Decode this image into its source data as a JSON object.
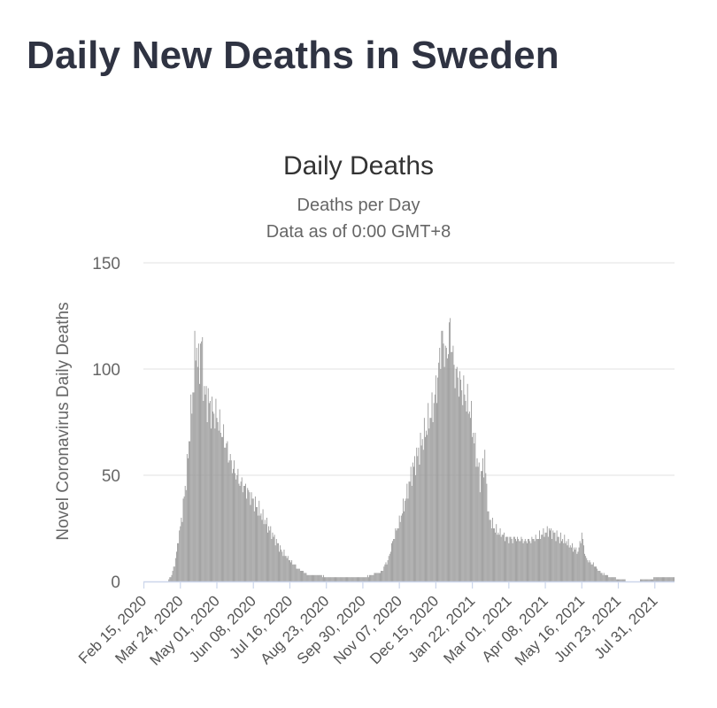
{
  "page": {
    "heading": "Daily New Deaths in Sweden"
  },
  "chart_data": {
    "type": "bar",
    "title": "Daily Deaths",
    "subtitle": "Deaths per Day",
    "subtitle2": "Data as of 0:00 GMT+8",
    "ylabel": "Novel Coronavirus Daily Deaths",
    "xlabel": "",
    "ylim": [
      0,
      150
    ],
    "y_ticks": [
      0,
      50,
      100,
      150
    ],
    "grid": true,
    "legend": "none",
    "bar_color": "#999999",
    "grid_color": "#e6e6e6",
    "baseline_color": "#ccd6eb",
    "x_tick_labels": [
      "Feb 15, 2020",
      "Mar 24, 2020",
      "May 01, 2020",
      "Jun 08, 2020",
      "Jul 16, 2020",
      "Aug 23, 2020",
      "Sep 30, 2020",
      "Nov 07, 2020",
      "Dec 15, 2020",
      "Jan 22, 2021",
      "Mar 01, 2021",
      "Apr 08, 2021",
      "May 16, 2021",
      "Jun 23, 2021",
      "Jul 31, 2021"
    ],
    "start_date": "Feb 15, 2020",
    "end_date": "Aug 20, 2021",
    "anchors": [
      [
        "Feb 15, 2020",
        0
      ],
      [
        "Mar 10, 2020",
        0
      ],
      [
        "Mar 14, 2020",
        2
      ],
      [
        "Mar 18, 2020",
        8
      ],
      [
        "Mar 22, 2020",
        20
      ],
      [
        "Mar 26, 2020",
        32
      ],
      [
        "Mar 30, 2020",
        48
      ],
      [
        "Apr 03, 2020",
        72
      ],
      [
        "Apr 07, 2020",
        95
      ],
      [
        "Apr 09, 2020",
        114
      ],
      [
        "Apr 12, 2020",
        100
      ],
      [
        "Apr 15, 2020",
        114
      ],
      [
        "Apr 18, 2020",
        88
      ],
      [
        "Apr 22, 2020",
        85
      ],
      [
        "Apr 26, 2020",
        80
      ],
      [
        "May 01, 2020",
        78
      ],
      [
        "May 05, 2020",
        72
      ],
      [
        "May 10, 2020",
        65
      ],
      [
        "May 15, 2020",
        57
      ],
      [
        "May 20, 2020",
        52
      ],
      [
        "May 25, 2020",
        47
      ],
      [
        "Jun 01, 2020",
        43
      ],
      [
        "Jun 08, 2020",
        38
      ],
      [
        "Jun 15, 2020",
        33
      ],
      [
        "Jun 22, 2020",
        27
      ],
      [
        "Jun 29, 2020",
        21
      ],
      [
        "Jul 05, 2020",
        16
      ],
      [
        "Jul 12, 2020",
        12
      ],
      [
        "Jul 20, 2020",
        8
      ],
      [
        "Jul 28, 2020",
        5
      ],
      [
        "Aug 05, 2020",
        3
      ],
      [
        "Aug 15, 2020",
        3
      ],
      [
        "Aug 25, 2020",
        2
      ],
      [
        "Sep 10, 2020",
        2
      ],
      [
        "Sep 30, 2020",
        2
      ],
      [
        "Oct 10, 2020",
        3
      ],
      [
        "Oct 20, 2020",
        5
      ],
      [
        "Oct 26, 2020",
        10
      ],
      [
        "Nov 01, 2020",
        20
      ],
      [
        "Nov 07, 2020",
        28
      ],
      [
        "Nov 14, 2020",
        40
      ],
      [
        "Nov 21, 2020",
        53
      ],
      [
        "Nov 28, 2020",
        62
      ],
      [
        "Dec 05, 2020",
        72
      ],
      [
        "Dec 12, 2020",
        82
      ],
      [
        "Dec 17, 2020",
        95
      ],
      [
        "Dec 21, 2020",
        115
      ],
      [
        "Dec 26, 2020",
        105
      ],
      [
        "Dec 30, 2020",
        120
      ],
      [
        "Jan 03, 2021",
        100
      ],
      [
        "Jan 08, 2021",
        95
      ],
      [
        "Jan 14, 2021",
        88
      ],
      [
        "Jan 20, 2021",
        80
      ],
      [
        "Jan 26, 2021",
        60
      ],
      [
        "Jan 30, 2021",
        48
      ],
      [
        "Feb 04, 2021",
        58
      ],
      [
        "Feb 08, 2021",
        30
      ],
      [
        "Feb 14, 2021",
        25
      ],
      [
        "Feb 22, 2021",
        22
      ],
      [
        "Mar 01, 2021",
        20
      ],
      [
        "Mar 10, 2021",
        20
      ],
      [
        "Mar 20, 2021",
        19
      ],
      [
        "Apr 01, 2021",
        21
      ],
      [
        "Apr 12, 2021",
        24
      ],
      [
        "Apr 22, 2021",
        21
      ],
      [
        "May 02, 2021",
        18
      ],
      [
        "May 12, 2021",
        14
      ],
      [
        "May 16, 2021",
        22
      ],
      [
        "May 20, 2021",
        11
      ],
      [
        "May 28, 2021",
        8
      ],
      [
        "Jun 05, 2021",
        4
      ],
      [
        "Jun 15, 2021",
        2
      ],
      [
        "Jun 25, 2021",
        1
      ],
      [
        "Jul 05, 2021",
        0
      ],
      [
        "Jul 25, 2021",
        1
      ],
      [
        "Aug 05, 2021",
        2
      ],
      [
        "Aug 20, 2021",
        2
      ]
    ]
  }
}
